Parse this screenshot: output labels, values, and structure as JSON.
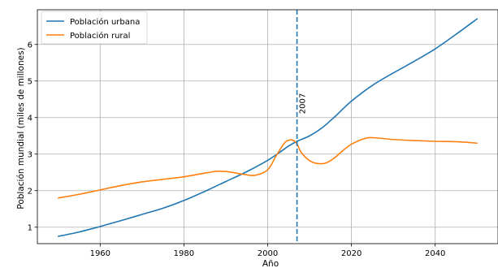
{
  "chart_data": {
    "type": "line",
    "title": "",
    "xlabel": "Año",
    "ylabel": "Población mundial (miles de millones)",
    "xlim": [
      1945,
      2055
    ],
    "ylim": [
      0.55,
      6.95
    ],
    "xticks": [
      1960,
      1980,
      2000,
      2020,
      2040
    ],
    "yticks": [
      1,
      2,
      3,
      4,
      5,
      6
    ],
    "grid": true,
    "legend_position": "top-left",
    "series": [
      {
        "name": "Población urbana",
        "color": "#1f77b4",
        "x": [
          1950,
          1955,
          1960,
          1965,
          1970,
          1975,
          1980,
          1985,
          1990,
          1995,
          2000,
          2003,
          2005,
          2007,
          2010,
          2013,
          2016,
          2020,
          2025,
          2030,
          2035,
          2040,
          2045,
          2050
        ],
        "y": [
          0.75,
          0.87,
          1.02,
          1.18,
          1.35,
          1.52,
          1.73,
          1.98,
          2.25,
          2.52,
          2.83,
          3.06,
          3.22,
          3.35,
          3.5,
          3.72,
          4.02,
          4.45,
          4.88,
          5.22,
          5.54,
          5.88,
          6.28,
          6.7
        ]
      },
      {
        "name": "Población rural",
        "color": "#ff7f0e",
        "x": [
          1950,
          1955,
          1960,
          1965,
          1970,
          1975,
          1980,
          1985,
          1988,
          1991,
          1994,
          1997,
          2000,
          2002,
          2004,
          2005,
          2006,
          2007,
          2008,
          2010,
          2012,
          2014,
          2016,
          2018,
          2020,
          2023,
          2025,
          2030,
          2035,
          2040,
          2045,
          2050
        ],
        "y": [
          1.8,
          1.9,
          2.02,
          2.14,
          2.24,
          2.31,
          2.38,
          2.48,
          2.53,
          2.51,
          2.45,
          2.42,
          2.57,
          2.95,
          3.3,
          3.38,
          3.38,
          3.28,
          3.05,
          2.82,
          2.74,
          2.76,
          2.9,
          3.1,
          3.27,
          3.42,
          3.45,
          3.4,
          3.37,
          3.35,
          3.34,
          3.3
        ]
      }
    ],
    "annotations": [
      {
        "type": "vline",
        "x": 2007,
        "color": "#1f77b4",
        "style": "dashed",
        "label": "2007"
      }
    ]
  }
}
